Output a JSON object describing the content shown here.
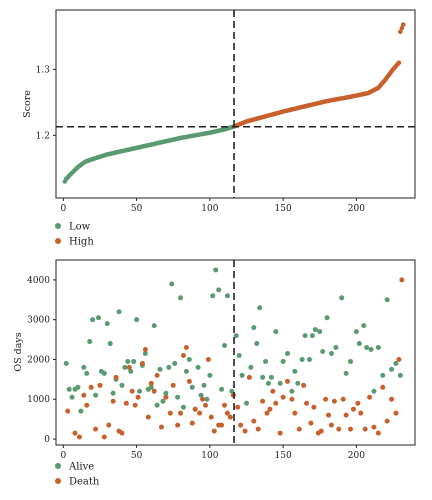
{
  "colors": {
    "low": "#5a9a72",
    "high": "#c8602c",
    "alive": "#5a9a72",
    "death": "#c8602c",
    "frame": "#222222",
    "cutoff": "#222222"
  },
  "chart_data": [
    {
      "type": "scatter",
      "ylabel": "Score",
      "xlim": [
        -5,
        240
      ],
      "ylim": [
        1.105,
        1.39
      ],
      "xticks": [
        0,
        50,
        100,
        150,
        200
      ],
      "yticks": [
        1.2,
        1.3
      ],
      "ytick_labels": [
        "1.2",
        "1.3"
      ],
      "cutoff_x": 116.5,
      "cutoff_y": 1.213,
      "n_samples": 232,
      "score_profile": [
        [
          0,
          1.121
        ],
        [
          1,
          1.13
        ],
        [
          2,
          1.134
        ],
        [
          5,
          1.141
        ],
        [
          10,
          1.152
        ],
        [
          15,
          1.16
        ],
        [
          20,
          1.164
        ],
        [
          30,
          1.171
        ],
        [
          40,
          1.176
        ],
        [
          50,
          1.181
        ],
        [
          60,
          1.186
        ],
        [
          70,
          1.191
        ],
        [
          80,
          1.196
        ],
        [
          90,
          1.2
        ],
        [
          100,
          1.204
        ],
        [
          110,
          1.209
        ],
        [
          116,
          1.213
        ],
        [
          125,
          1.221
        ],
        [
          135,
          1.227
        ],
        [
          150,
          1.236
        ],
        [
          165,
          1.244
        ],
        [
          180,
          1.252
        ],
        [
          195,
          1.258
        ],
        [
          208,
          1.264
        ],
        [
          215,
          1.272
        ],
        [
          220,
          1.285
        ],
        [
          225,
          1.3
        ],
        [
          229,
          1.31
        ],
        [
          230,
          1.357
        ],
        [
          232,
          1.368
        ]
      ],
      "legend": {
        "position": "bottom-left",
        "entries": [
          {
            "label": "Low"
          },
          {
            "label": "High"
          }
        ]
      }
    },
    {
      "type": "scatter",
      "ylabel": "OS days",
      "xlim": [
        -5,
        240
      ],
      "ylim": [
        -150,
        4500
      ],
      "xticks": [
        0,
        50,
        100,
        150,
        200
      ],
      "yticks": [
        0,
        1000,
        2000,
        3000,
        4000
      ],
      "cutoff_x": 116.5,
      "legend": {
        "position": "bottom-left",
        "entries": [
          {
            "label": "Alive"
          },
          {
            "label": "Death"
          }
        ]
      },
      "alive": [
        [
          2,
          1900
        ],
        [
          4,
          1250
        ],
        [
          6,
          1050
        ],
        [
          8,
          1250
        ],
        [
          10,
          1300
        ],
        [
          12,
          700
        ],
        [
          14,
          1800
        ],
        [
          16,
          1650
        ],
        [
          18,
          2450
        ],
        [
          20,
          3000
        ],
        [
          22,
          1100
        ],
        [
          24,
          3050
        ],
        [
          26,
          1700
        ],
        [
          28,
          1650
        ],
        [
          30,
          2900
        ],
        [
          32,
          2400
        ],
        [
          34,
          1150
        ],
        [
          36,
          1500
        ],
        [
          38,
          3200
        ],
        [
          40,
          1350
        ],
        [
          42,
          1800
        ],
        [
          44,
          1950
        ],
        [
          46,
          1700
        ],
        [
          48,
          1950
        ],
        [
          50,
          3000
        ],
        [
          52,
          1200
        ],
        [
          54,
          1850
        ],
        [
          56,
          2150
        ],
        [
          58,
          1250
        ],
        [
          60,
          1300
        ],
        [
          62,
          2850
        ],
        [
          64,
          850
        ],
        [
          66,
          1750
        ],
        [
          68,
          950
        ],
        [
          70,
          1150
        ],
        [
          72,
          1800
        ],
        [
          74,
          3900
        ],
        [
          76,
          1900
        ],
        [
          78,
          1050
        ],
        [
          80,
          3550
        ],
        [
          82,
          800
        ],
        [
          84,
          1700
        ],
        [
          86,
          2000
        ],
        [
          88,
          1300
        ],
        [
          90,
          750
        ],
        [
          92,
          1800
        ],
        [
          94,
          1100
        ],
        [
          96,
          1350
        ],
        [
          98,
          1000
        ],
        [
          100,
          1600
        ],
        [
          102,
          3600
        ],
        [
          104,
          4250
        ],
        [
          106,
          3750
        ],
        [
          108,
          1250
        ],
        [
          110,
          2350
        ],
        [
          112,
          3600
        ],
        [
          115,
          1200
        ],
        [
          118,
          2600
        ],
        [
          120,
          2100
        ],
        [
          122,
          1600
        ],
        [
          125,
          900
        ],
        [
          128,
          1800
        ],
        [
          130,
          2800
        ],
        [
          132,
          2400
        ],
        [
          134,
          3300
        ],
        [
          136,
          1550
        ],
        [
          138,
          1950
        ],
        [
          140,
          1400
        ],
        [
          142,
          1550
        ],
        [
          145,
          2700
        ],
        [
          148,
          1400
        ],
        [
          150,
          1950
        ],
        [
          153,
          2150
        ],
        [
          156,
          1200
        ],
        [
          158,
          1700
        ],
        [
          160,
          1400
        ],
        [
          163,
          2000
        ],
        [
          165,
          2600
        ],
        [
          168,
          2000
        ],
        [
          170,
          2600
        ],
        [
          172,
          2750
        ],
        [
          175,
          2700
        ],
        [
          177,
          2200
        ],
        [
          180,
          3050
        ],
        [
          183,
          2150
        ],
        [
          186,
          2300
        ],
        [
          190,
          3550
        ],
        [
          193,
          1650
        ],
        [
          196,
          1950
        ],
        [
          200,
          2700
        ],
        [
          202,
          2400
        ],
        [
          205,
          2850
        ],
        [
          207,
          2300
        ],
        [
          210,
          2250
        ],
        [
          212,
          1200
        ],
        [
          215,
          2300
        ],
        [
          218,
          1600
        ],
        [
          221,
          3500
        ],
        [
          224,
          1750
        ],
        [
          227,
          1900
        ],
        [
          230,
          1600
        ]
      ],
      "death": [
        [
          3,
          700
        ],
        [
          8,
          150
        ],
        [
          11,
          50
        ],
        [
          14,
          1100
        ],
        [
          16,
          850
        ],
        [
          19,
          1300
        ],
        [
          22,
          250
        ],
        [
          25,
          1350
        ],
        [
          28,
          50
        ],
        [
          31,
          350
        ],
        [
          34,
          950
        ],
        [
          36,
          1550
        ],
        [
          38,
          200
        ],
        [
          40,
          150
        ],
        [
          43,
          900
        ],
        [
          45,
          1800
        ],
        [
          47,
          1200
        ],
        [
          49,
          850
        ],
        [
          51,
          1050
        ],
        [
          54,
          1900
        ],
        [
          56,
          2250
        ],
        [
          58,
          550
        ],
        [
          60,
          1400
        ],
        [
          62,
          1200
        ],
        [
          64,
          1600
        ],
        [
          67,
          300
        ],
        [
          70,
          1050
        ],
        [
          73,
          650
        ],
        [
          75,
          1350
        ],
        [
          78,
          350
        ],
        [
          80,
          650
        ],
        [
          82,
          2100
        ],
        [
          84,
          2300
        ],
        [
          86,
          1450
        ],
        [
          88,
          400
        ],
        [
          90,
          750
        ],
        [
          93,
          650
        ],
        [
          95,
          1000
        ],
        [
          97,
          850
        ],
        [
          99,
          2000
        ],
        [
          101,
          550
        ],
        [
          103,
          200
        ],
        [
          106,
          350
        ],
        [
          108,
          350
        ],
        [
          110,
          850
        ],
        [
          112,
          650
        ],
        [
          114,
          550
        ],
        [
          116,
          1100
        ],
        [
          119,
          800
        ],
        [
          121,
          350
        ],
        [
          124,
          200
        ],
        [
          127,
          1550
        ],
        [
          130,
          450
        ],
        [
          133,
          250
        ],
        [
          136,
          950
        ],
        [
          139,
          650
        ],
        [
          141,
          750
        ],
        [
          143,
          1200
        ],
        [
          145,
          900
        ],
        [
          148,
          150
        ],
        [
          150,
          1050
        ],
        [
          153,
          1450
        ],
        [
          156,
          1000
        ],
        [
          158,
          650
        ],
        [
          161,
          250
        ],
        [
          164,
          1350
        ],
        [
          166,
          900
        ],
        [
          169,
          400
        ],
        [
          171,
          800
        ],
        [
          174,
          150
        ],
        [
          176,
          200
        ],
        [
          179,
          1000
        ],
        [
          181,
          600
        ],
        [
          183,
          350
        ],
        [
          185,
          950
        ],
        [
          188,
          250
        ],
        [
          191,
          1000
        ],
        [
          193,
          600
        ],
        [
          196,
          250
        ],
        [
          198,
          750
        ],
        [
          201,
          900
        ],
        [
          203,
          650
        ],
        [
          206,
          250
        ],
        [
          209,
          1050
        ],
        [
          212,
          300
        ],
        [
          215,
          150
        ],
        [
          218,
          1300
        ],
        [
          221,
          450
        ],
        [
          224,
          1000
        ],
        [
          227,
          650
        ],
        [
          229,
          2000
        ],
        [
          231,
          4000
        ]
      ]
    }
  ]
}
